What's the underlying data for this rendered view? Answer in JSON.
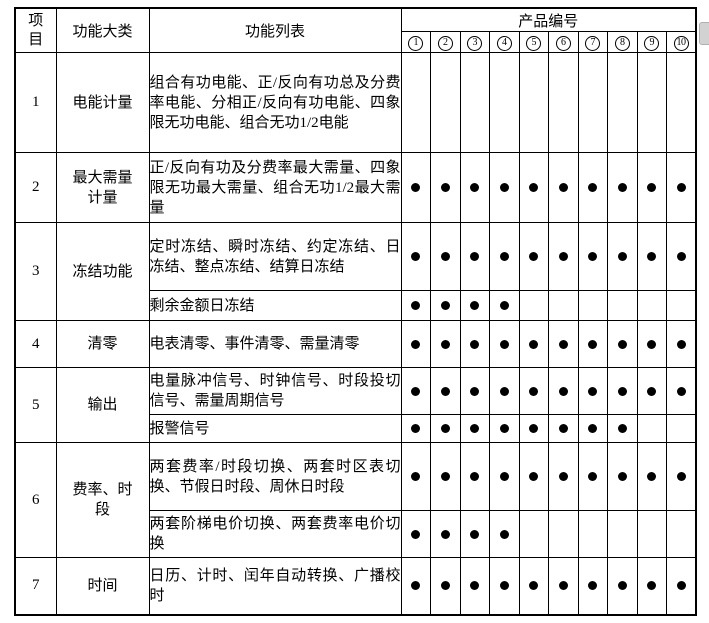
{
  "colors": {
    "border": "#000000",
    "dot": "#000000",
    "background": "#ffffff",
    "scrollbar_thumb": "#d2d2d2"
  },
  "table": {
    "headers": {
      "item": "项\n目",
      "category": "功能大类",
      "functions": "功能列表",
      "products": "产品编号"
    },
    "product_numbers": [
      "1",
      "2",
      "3",
      "4",
      "5",
      "6",
      "7",
      "8",
      "9",
      "10"
    ],
    "rows": [
      {
        "item": "1",
        "category": "电能计量",
        "subrows": [
          {
            "functions": "组合有功电能、正/反向有功总及分费率电能、分相正/反向有功电能、四象限无功电能、组合无功1/2电能",
            "dots": [
              0,
              0,
              0,
              0,
              0,
              0,
              0,
              0,
              0,
              0
            ]
          }
        ]
      },
      {
        "item": "2",
        "category": "最大需量\n计量",
        "subrows": [
          {
            "functions": "正/反向有功及分费率最大需量、四象限无功最大需量、组合无功1/2最大需量",
            "dots": [
              1,
              1,
              1,
              1,
              1,
              1,
              1,
              1,
              1,
              1
            ]
          }
        ]
      },
      {
        "item": "3",
        "category": "冻结功能",
        "subrows": [
          {
            "functions": "定时冻结、瞬时冻结、约定冻结、日冻结、整点冻结、结算日冻结",
            "dots": [
              1,
              1,
              1,
              1,
              1,
              1,
              1,
              1,
              1,
              1
            ]
          },
          {
            "functions": "剩余金额日冻结",
            "dots": [
              1,
              1,
              1,
              1,
              0,
              0,
              0,
              0,
              0,
              0
            ]
          }
        ]
      },
      {
        "item": "4",
        "category": "清零",
        "subrows": [
          {
            "functions": "电表清零、事件清零、需量清零",
            "dots": [
              1,
              1,
              1,
              1,
              1,
              1,
              1,
              1,
              1,
              1
            ]
          }
        ]
      },
      {
        "item": "5",
        "category": "输出",
        "subrows": [
          {
            "functions": "电量脉冲信号、时钟信号、时段投切信号、需量周期信号",
            "dots": [
              1,
              1,
              1,
              1,
              1,
              1,
              1,
              1,
              1,
              1
            ]
          },
          {
            "functions": "报警信号",
            "dots": [
              1,
              1,
              1,
              1,
              1,
              1,
              1,
              1,
              0,
              0
            ]
          }
        ]
      },
      {
        "item": "6",
        "category": "费率、时\n段",
        "subrows": [
          {
            "functions": "两套费率/时段切换、两套时区表切换、节假日时段、周休日时段",
            "dots": [
              1,
              1,
              1,
              1,
              1,
              1,
              1,
              1,
              1,
              1
            ]
          },
          {
            "functions": "两套阶梯电价切换、两套费率电价切换",
            "dots": [
              1,
              1,
              1,
              1,
              0,
              0,
              0,
              0,
              0,
              0
            ]
          }
        ]
      },
      {
        "item": "7",
        "category": "时间",
        "subrows": [
          {
            "functions": "日历、计时、闰年自动转换、广播校时",
            "dots": [
              1,
              1,
              1,
              1,
              1,
              1,
              1,
              1,
              1,
              1
            ]
          }
        ]
      }
    ]
  }
}
